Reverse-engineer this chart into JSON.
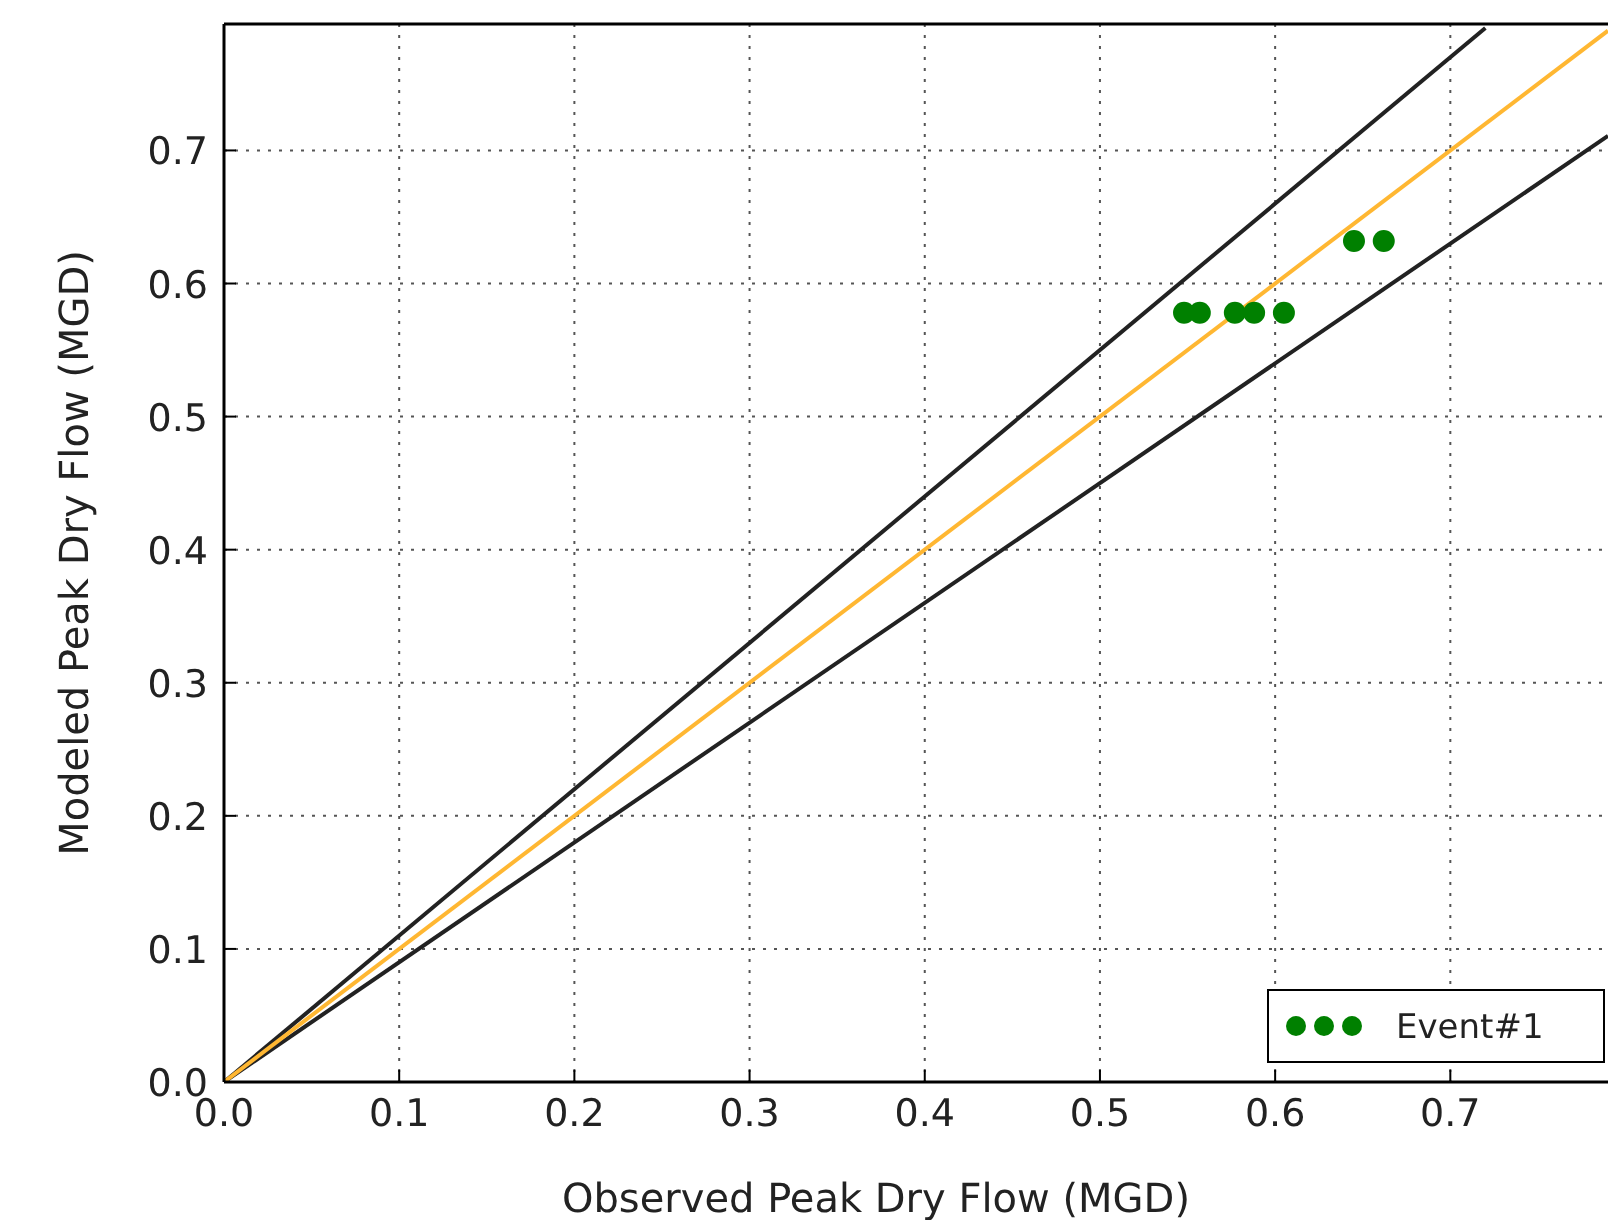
{
  "chart_data": {
    "type": "scatter",
    "xlabel": "Observed Peak Dry Flow (MGD)",
    "ylabel": "Modeled Peak Dry Flow (MGD)",
    "xlim": [
      0,
      0.79
    ],
    "ylim": [
      0,
      0.795
    ],
    "xticks": [
      {
        "value": 0,
        "label": "0.0"
      },
      0.1,
      0.2,
      0.3,
      0.4,
      0.5,
      0.6,
      0.7
    ],
    "yticks": [
      {
        "value": 0,
        "label": "0.0"
      },
      0.1,
      0.2,
      0.3,
      0.4,
      0.5,
      0.6,
      0.7
    ],
    "grid": true,
    "legend": "bottom right",
    "series": [
      {
        "type": "line",
        "color": "#222222",
        "x": [
          0,
          0.72
        ],
        "values": [
          0,
          0.792
        ],
        "marker": "none",
        "line_style": "solid"
      },
      {
        "type": "line",
        "color": "#222222",
        "x": [
          0,
          0.79
        ],
        "values": [
          0,
          0.711
        ],
        "marker": "none",
        "line_style": "solid"
      },
      {
        "type": "line",
        "color": "#ffb732",
        "x": [
          0,
          0.79
        ],
        "values": [
          0,
          0.79
        ],
        "marker": "none",
        "line_style": "solid"
      },
      {
        "type": "scatter",
        "name": "Event#1",
        "color": "#008000",
        "marker": "circle",
        "x": [
          0.548,
          0.557,
          0.577,
          0.588,
          0.605,
          0.645,
          0.662
        ],
        "values": [
          0.578,
          0.578,
          0.578,
          0.578,
          0.578,
          0.632,
          0.632
        ]
      }
    ]
  }
}
